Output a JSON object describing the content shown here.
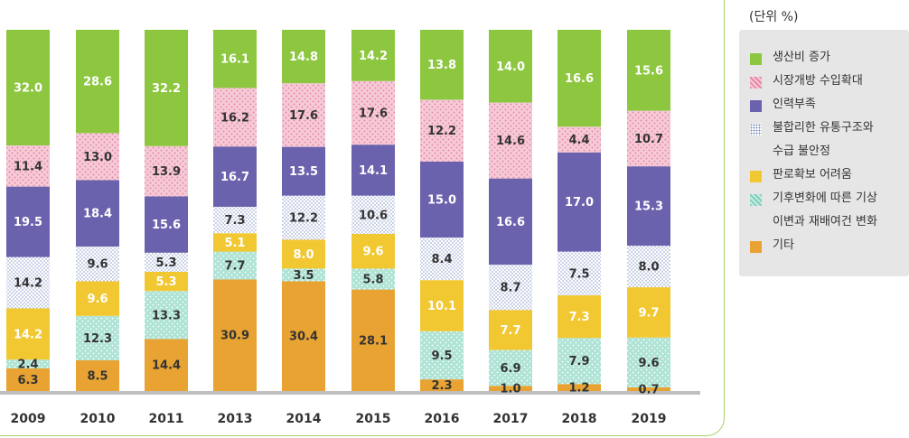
{
  "unit_label": "(단위 %)",
  "colors": {
    "green": "#8dc63f",
    "pink": "#f3bccd",
    "purple": "#6a62ad",
    "dotted": "#e8eef8",
    "yellow": "#f2c832",
    "teal": "#a8ded1",
    "orange": "#e8a332",
    "axis": "#bfbfbf"
  },
  "legend": [
    {
      "label": "생산비 증가",
      "color": "green"
    },
    {
      "label": "시장개방 수입확대",
      "color": "pink"
    },
    {
      "label": "인력부족",
      "color": "purple"
    },
    {
      "label": "불합리한 유통구조와\n수급 불안정",
      "color": "dotted"
    },
    {
      "label": "판로확보 어려움",
      "color": "yellow"
    },
    {
      "label": "기후변화에 따른 기상\n이변과 재배여건 변화",
      "color": "teal"
    },
    {
      "label": "기타",
      "color": "orange"
    }
  ],
  "chart_data": {
    "type": "bar",
    "stacked": true,
    "percent": true,
    "categories": [
      "2009",
      "2010",
      "2011",
      "2013",
      "2014",
      "2015",
      "2016",
      "2017",
      "2018",
      "2019"
    ],
    "series": [
      {
        "name": "기타",
        "color": "orange",
        "values": [
          6.3,
          8.5,
          14.4,
          30.9,
          30.4,
          28.1,
          2.3,
          1.0,
          1.2,
          0.7
        ]
      },
      {
        "name": "기후변화에 따른 기상 이변과 재배여건 변화",
        "color": "teal",
        "values": [
          2.4,
          12.3,
          13.3,
          7.7,
          3.5,
          5.8,
          9.5,
          6.9,
          7.9,
          9.6
        ]
      },
      {
        "name": "판로확보 어려움",
        "color": "yellow",
        "values": [
          14.2,
          9.6,
          5.3,
          5.1,
          8.0,
          9.6,
          10.1,
          7.7,
          7.3,
          9.7
        ]
      },
      {
        "name": "불합리한 유통구조와 수급 불안정",
        "color": "dotted",
        "values": [
          14.2,
          9.6,
          5.3,
          7.3,
          12.2,
          10.6,
          8.4,
          8.7,
          7.5,
          8.0
        ]
      },
      {
        "name": "인력부족",
        "color": "purple",
        "values": [
          19.5,
          18.4,
          15.6,
          16.7,
          13.5,
          14.1,
          15.0,
          16.6,
          17.0,
          15.3
        ]
      },
      {
        "name": "시장개방 수입확대",
        "color": "pink",
        "values": [
          11.4,
          13.0,
          13.9,
          16.2,
          17.6,
          17.6,
          12.2,
          14.6,
          4.4,
          10.7
        ]
      },
      {
        "name": "생산비 증가",
        "color": "green",
        "values": [
          32.0,
          28.6,
          32.2,
          16.1,
          14.8,
          14.2,
          13.8,
          14.0,
          16.6,
          15.6
        ]
      }
    ],
    "ylim": [
      0,
      100
    ]
  }
}
